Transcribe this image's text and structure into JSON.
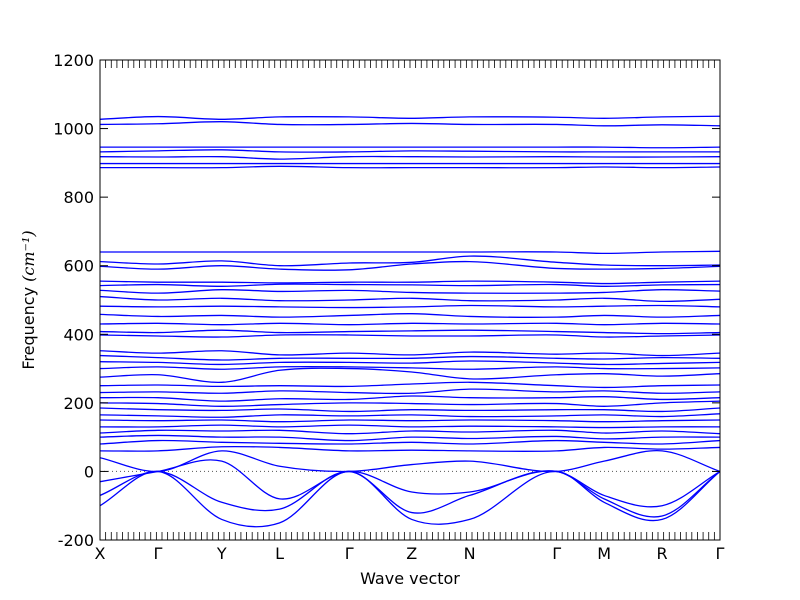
{
  "chart_data": {
    "type": "line",
    "title": "",
    "xlabel": "Wave vector",
    "ylabel": "Frequency ",
    "ylabel_unit": "(cm⁻¹)",
    "ylim": [
      -200,
      1200
    ],
    "yticks": [
      -200,
      0,
      200,
      400,
      600,
      800,
      1000,
      1200
    ],
    "grid": false,
    "legend": "none",
    "line_color": "#0000ff",
    "zero_line_style": "dotted",
    "k_points": [
      {
        "label": "X",
        "x": 0.0
      },
      {
        "label": "Γ",
        "x": 0.556
      },
      {
        "label": "Y",
        "x": 1.167
      },
      {
        "label": "L",
        "x": 1.722
      },
      {
        "label": "Γ",
        "x": 2.389
      },
      {
        "label": "Z",
        "x": 2.989
      },
      {
        "label": "N",
        "x": 3.544
      },
      {
        "label": "Γ",
        "x": 4.378
      },
      {
        "label": "M",
        "x": 4.833
      },
      {
        "label": "R",
        "x": 5.389
      },
      {
        "label": "Γ",
        "x": 5.944
      }
    ],
    "x": [
      0.0,
      0.556,
      1.167,
      1.722,
      2.389,
      2.989,
      3.544,
      4.378,
      4.833,
      5.389,
      5.944
    ],
    "series": [
      {
        "values": [
          1027,
          1035,
          1027,
          1034,
          1034,
          1030,
          1034,
          1033,
          1030,
          1034,
          1036
        ]
      },
      {
        "values": [
          1012,
          1014,
          1020,
          1012,
          1012,
          1015,
          1012,
          1012,
          1008,
          1011,
          1008
        ]
      },
      {
        "values": [
          946,
          946,
          946,
          946,
          946,
          946,
          946,
          946,
          946,
          944,
          946
        ]
      },
      {
        "values": [
          932,
          935,
          938,
          932,
          932,
          935,
          934,
          932,
          932,
          932,
          932
        ]
      },
      {
        "values": [
          918,
          917,
          918,
          911,
          918,
          918,
          917,
          918,
          917,
          917,
          918
        ]
      },
      {
        "values": [
          898,
          898,
          898,
          898,
          898,
          898,
          898,
          898,
          898,
          898,
          898
        ]
      },
      {
        "values": [
          886,
          886,
          886,
          890,
          886,
          886,
          886,
          886,
          888,
          886,
          888
        ]
      },
      {
        "values": [
          640,
          640,
          640,
          640,
          640,
          640,
          640,
          640,
          636,
          640,
          642
        ]
      },
      {
        "values": [
          612,
          605,
          614,
          600,
          608,
          610,
          628,
          610,
          602,
          600,
          602
        ]
      },
      {
        "values": [
          598,
          590,
          600,
          590,
          588,
          605,
          612,
          592,
          590,
          592,
          598
        ]
      },
      {
        "values": [
          555,
          552,
          552,
          550,
          552,
          552,
          555,
          552,
          548,
          552,
          555
        ]
      },
      {
        "values": [
          542,
          545,
          540,
          546,
          545,
          544,
          542,
          545,
          540,
          544,
          545
        ]
      },
      {
        "values": [
          528,
          520,
          530,
          525,
          528,
          522,
          520,
          520,
          522,
          530,
          526
        ]
      },
      {
        "values": [
          510,
          500,
          505,
          498,
          500,
          505,
          498,
          500,
          505,
          496,
          502
        ]
      },
      {
        "values": [
          482,
          480,
          482,
          480,
          478,
          480,
          484,
          480,
          482,
          484,
          480
        ]
      },
      {
        "values": [
          458,
          452,
          455,
          450,
          455,
          460,
          452,
          450,
          455,
          450,
          455
        ]
      },
      {
        "values": [
          430,
          432,
          428,
          432,
          428,
          432,
          430,
          432,
          428,
          432,
          430
        ]
      },
      {
        "values": [
          408,
          405,
          412,
          405,
          408,
          410,
          412,
          408,
          405,
          402,
          405
        ]
      },
      {
        "values": [
          398,
          395,
          392,
          398,
          398,
          395,
          395,
          398,
          392,
          395,
          398
        ]
      },
      {
        "values": [
          352,
          345,
          352,
          340,
          345,
          340,
          348,
          342,
          345,
          338,
          345
        ]
      },
      {
        "values": [
          338,
          332,
          325,
          330,
          330,
          330,
          335,
          330,
          328,
          332,
          330
        ]
      },
      {
        "values": [
          320,
          318,
          312,
          318,
          318,
          316,
          322,
          316,
          312,
          315,
          318
        ]
      },
      {
        "values": [
          300,
          305,
          298,
          305,
          305,
          302,
          298,
          305,
          300,
          300,
          302
        ]
      },
      {
        "values": [
          275,
          282,
          260,
          295,
          300,
          290,
          270,
          282,
          285,
          278,
          285
        ]
      },
      {
        "values": [
          250,
          252,
          248,
          250,
          248,
          255,
          260,
          250,
          245,
          250,
          252
        ]
      },
      {
        "values": [
          230,
          232,
          228,
          235,
          230,
          228,
          240,
          232,
          235,
          228,
          232
        ]
      },
      {
        "values": [
          215,
          215,
          205,
          212,
          210,
          220,
          215,
          215,
          218,
          210,
          215
        ]
      },
      {
        "values": [
          200,
          198,
          190,
          195,
          200,
          198,
          195,
          198,
          190,
          200,
          205
        ]
      },
      {
        "values": [
          185,
          180,
          178,
          182,
          175,
          180,
          178,
          180,
          180,
          175,
          185
        ]
      },
      {
        "values": [
          165,
          162,
          158,
          165,
          162,
          165,
          160,
          162,
          165,
          160,
          168
        ]
      },
      {
        "values": [
          150,
          148,
          150,
          145,
          150,
          148,
          150,
          148,
          145,
          148,
          150
        ]
      },
      {
        "values": [
          130,
          130,
          135,
          130,
          135,
          130,
          132,
          130,
          128,
          130,
          130
        ]
      },
      {
        "values": [
          112,
          120,
          118,
          120,
          110,
          118,
          115,
          120,
          112,
          118,
          110
        ]
      },
      {
        "values": [
          100,
          105,
          100,
          100,
          90,
          100,
          96,
          102,
          95,
          100,
          100
        ]
      },
      {
        "values": [
          80,
          90,
          85,
          82,
          80,
          85,
          80,
          90,
          85,
          80,
          90
        ]
      },
      {
        "values": [
          60,
          60,
          72,
          70,
          60,
          62,
          60,
          60,
          70,
          65,
          70
        ]
      },
      {
        "values": [
          40,
          0,
          60,
          15,
          0,
          20,
          30,
          0,
          30,
          60,
          0
        ]
      },
      {
        "values": [
          -30,
          0,
          30,
          -80,
          0,
          -60,
          -60,
          0,
          -70,
          -100,
          0
        ]
      },
      {
        "values": [
          -70,
          0,
          -90,
          -110,
          0,
          -120,
          -70,
          0,
          -80,
          -130,
          0
        ]
      },
      {
        "values": [
          -100,
          0,
          -140,
          -150,
          0,
          -140,
          -140,
          0,
          -90,
          -140,
          0
        ]
      }
    ]
  }
}
